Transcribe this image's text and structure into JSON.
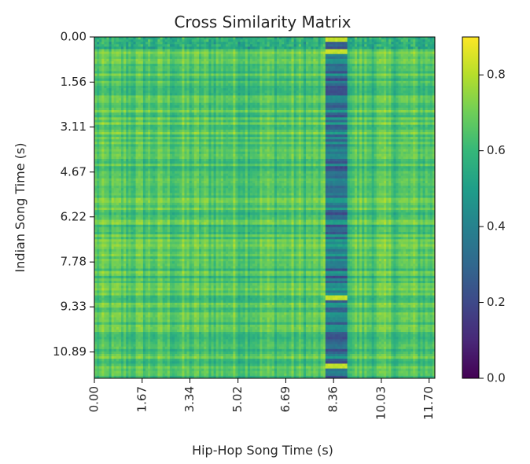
{
  "chart_data": {
    "type": "heatmap",
    "title": "Cross Similarity Matrix",
    "xlabel": "Hip-Hop Song Time (s)",
    "ylabel": "Indian Song Time (s)",
    "xlim": [
      0,
      11.9
    ],
    "ylim": [
      11.8,
      0
    ],
    "x_ticks": [
      0.0,
      1.67,
      3.34,
      5.02,
      6.69,
      8.36,
      10.03,
      11.7
    ],
    "x_tick_labels": [
      "0.00",
      "1.67",
      "3.34",
      "5.02",
      "6.69",
      "8.36",
      "10.03",
      "11.70"
    ],
    "y_ticks": [
      0.0,
      1.56,
      3.11,
      4.67,
      6.22,
      7.78,
      9.33,
      10.89
    ],
    "y_tick_labels": [
      "0.00",
      "1.56",
      "3.11",
      "4.67",
      "6.22",
      "7.78",
      "9.33",
      "10.89"
    ],
    "colorbar": {
      "colormap": "viridis",
      "range": [
        0.0,
        0.9
      ],
      "ticks": [
        0.0,
        0.2,
        0.4,
        0.6,
        0.8
      ],
      "tick_labels": [
        "0.0",
        "0.2",
        "0.4",
        "0.6",
        "0.8"
      ]
    },
    "pattern": {
      "typical_value": 0.65,
      "low_similarity_band_x": [
        8.1,
        8.8
      ],
      "low_band_value": 0.35,
      "bright_rows_y_in_band": [
        0.1,
        0.5,
        9.0,
        11.4
      ]
    },
    "colors": {
      "viridis": [
        "#440154",
        "#482878",
        "#3e4989",
        "#31688e",
        "#26828e",
        "#1f9e89",
        "#35b779",
        "#6ece58",
        "#b5de2b",
        "#fde725"
      ]
    }
  }
}
